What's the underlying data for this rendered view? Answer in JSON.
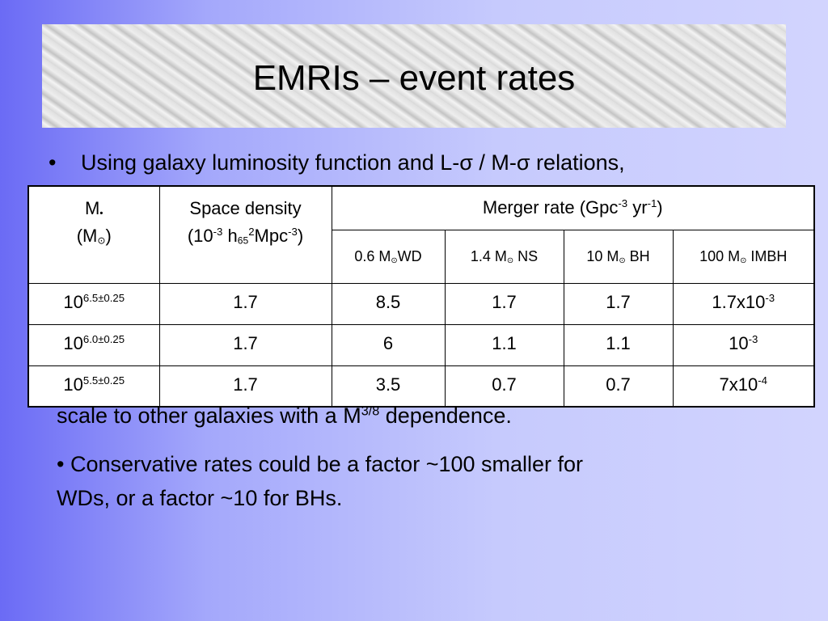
{
  "title": "EMRIs – event rates",
  "bullet_1": "Using galaxy luminosity function and L-σ / M-σ relations,",
  "bullet_2_tail": [
    "scale to other galaxies with a M",
    {
      "sup": "3/8"
    },
    " dependence."
  ],
  "bullet_3": {
    "marker": "•",
    "lines": [
      "Conservative rates could be a factor ~100 smaller for",
      "WDs, or a factor ~10 for BHs."
    ]
  },
  "table": {
    "mass_header": [
      [
        "M",
        {
          "sub": "•"
        }
      ],
      [
        "(M",
        {
          "sub": "⊙"
        },
        ")"
      ]
    ],
    "density_header": [
      [
        "Space density"
      ],
      [
        "(10",
        {
          "sup": "-3"
        },
        " h",
        {
          "sub": "65"
        },
        {
          "sup": "2"
        },
        "Mpc",
        {
          "sup": "-3"
        },
        ")"
      ]
    ],
    "rate_header": [
      [
        "Merger rate   (Gpc",
        {
          "sup": "-3"
        },
        " yr",
        {
          "sup": "-1"
        },
        ")"
      ]
    ],
    "rate_columns": [
      [
        "0.6 M",
        {
          "sub": "⊙"
        },
        "WD"
      ],
      [
        "1.4 M",
        {
          "sub": "⊙"
        },
        " NS"
      ],
      [
        "10 M",
        {
          "sub": "⊙"
        },
        " BH"
      ],
      [
        "100 M",
        {
          "sub": "⊙"
        },
        " IMBH"
      ]
    ],
    "rows": [
      [
        [
          "10",
          {
            "sup": "6.5±0.25"
          }
        ],
        [
          "1.7"
        ],
        [
          "8.5"
        ],
        [
          "1.7"
        ],
        [
          "1.7"
        ],
        [
          "1.7x10",
          {
            "sup": "-3"
          }
        ]
      ],
      [
        [
          "10",
          {
            "sup": "6.0±0.25"
          }
        ],
        [
          "1.7"
        ],
        [
          "6"
        ],
        [
          "1.1"
        ],
        [
          "1.1"
        ],
        [
          "10",
          {
            "sup": "-3"
          }
        ]
      ],
      [
        [
          "10",
          {
            "sup": "5.5±0.25"
          }
        ],
        [
          "1.7"
        ],
        [
          "3.5"
        ],
        [
          "0.7"
        ],
        [
          "0.7"
        ],
        [
          "7x10",
          {
            "sup": "-4"
          }
        ]
      ]
    ]
  }
}
